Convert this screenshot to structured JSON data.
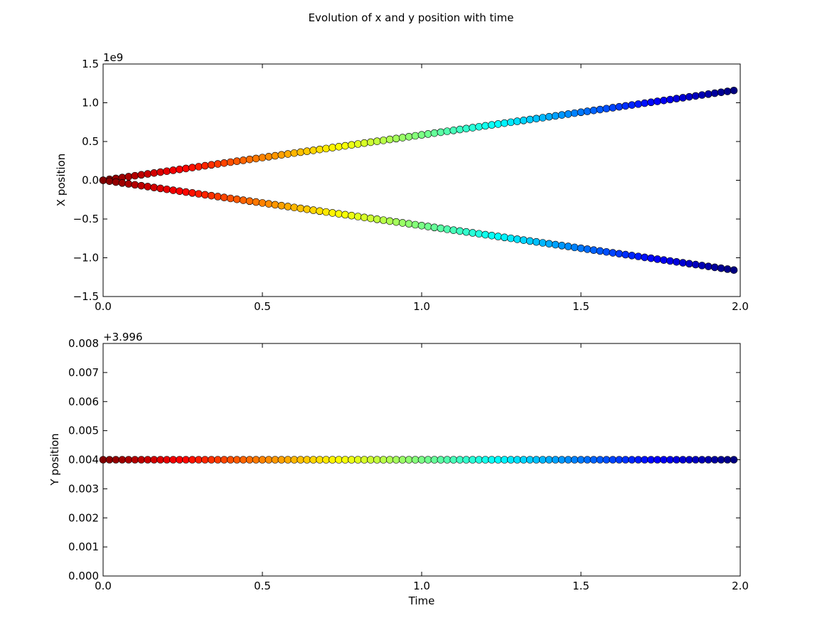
{
  "figure": {
    "title": "Evolution of x and y position with time"
  },
  "chart_data": [
    {
      "type": "scatter",
      "ylabel": "X position",
      "xlabel": "",
      "xlim": [
        0.0,
        2.0
      ],
      "ylim": [
        -1.5,
        1.5
      ],
      "y_multiplier_label": "1e9",
      "y_multiplier": 1000000000,
      "x_ticks": [
        "0.0",
        "0.5",
        "1.0",
        "1.5",
        "2.0"
      ],
      "y_ticks": [
        "−1.5",
        "−1.0",
        "−0.5",
        "0.0",
        "0.5",
        "1.0",
        "1.5"
      ],
      "x": {
        "start": 0.0,
        "end": 1.98,
        "step": 0.02
      },
      "series": [
        {
          "slope": 585000000
        },
        {
          "slope": -585000000
        }
      ],
      "color_map": "jet_reversed",
      "grid": false,
      "legend": "none"
    },
    {
      "type": "scatter",
      "ylabel": "Y position",
      "xlabel": "Time",
      "xlim": [
        0.0,
        2.0
      ],
      "ylim": [
        3.996,
        4.004
      ],
      "y_offset_label": "+3.996",
      "x_ticks": [
        "0.0",
        "0.5",
        "1.0",
        "1.5",
        "2.0"
      ],
      "y_ticks": [
        "0.000",
        "0.001",
        "0.002",
        "0.003",
        "0.004",
        "0.005",
        "0.006",
        "0.007",
        "0.008"
      ],
      "x": {
        "start": 0.0,
        "end": 1.98,
        "step": 0.02
      },
      "series": [
        {
          "constant": 4.0
        }
      ],
      "color_map": "jet_reversed",
      "grid": false,
      "legend": "none"
    }
  ]
}
